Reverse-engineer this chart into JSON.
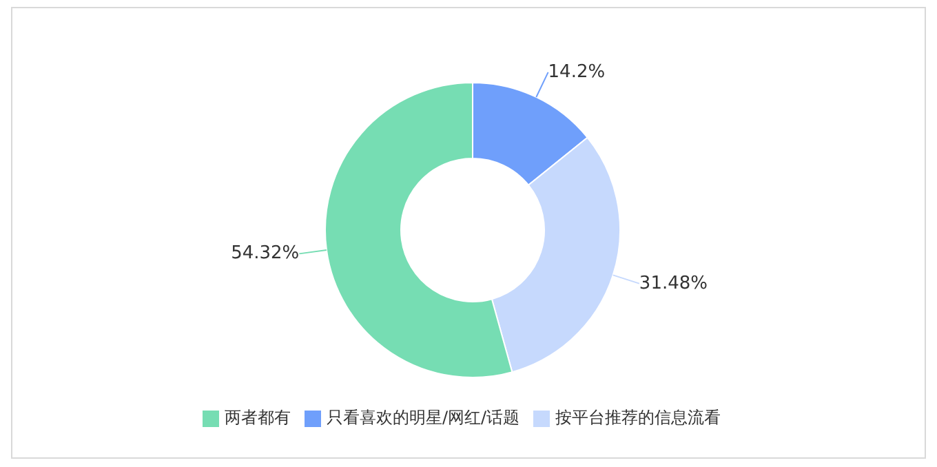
{
  "chart_data": {
    "type": "donut",
    "categories": [
      "只看喜欢的明星/网红/话题",
      "按平台推荐的信息流看",
      "两者都有"
    ],
    "values": [
      14.2,
      31.48,
      54.32
    ],
    "colors": [
      "#6f9ffb",
      "#c6d9fd",
      "#76ddb3"
    ],
    "value_labels": [
      "14.2%",
      "31.48%",
      "54.32%"
    ],
    "legend": "bottom"
  }
}
